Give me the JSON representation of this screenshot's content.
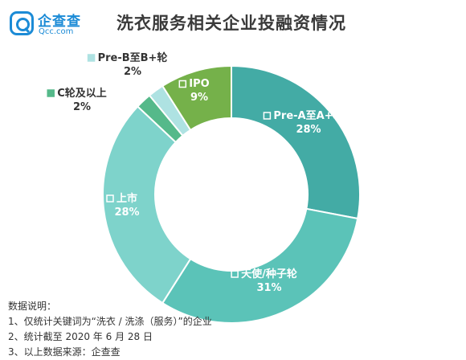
{
  "logo": {
    "name": "企查查",
    "domain": "Qcc.com"
  },
  "title": "洗衣服务相关企业投融资情况",
  "chart_data": {
    "type": "pie",
    "donut": true,
    "unit": "%",
    "slices": [
      {
        "label": "Pre-A至A+轮",
        "value": 28,
        "value_label": "28%",
        "color": "#43ABA5"
      },
      {
        "label": "天使/种子轮",
        "value": 31,
        "value_label": "31%",
        "color": "#5BC3B8"
      },
      {
        "label": "上市",
        "value": 28,
        "value_label": "28%",
        "color": "#7ED3CB"
      },
      {
        "label": "C轮及以上",
        "value": 2,
        "value_label": "2%",
        "color": "#55B98A"
      },
      {
        "label": "Pre-B至B+轮",
        "value": 2,
        "value_label": "2%",
        "color": "#AEE2E2"
      },
      {
        "label": "IPO",
        "value": 9,
        "value_label": "9%",
        "color": "#75B14A"
      }
    ]
  },
  "notes": {
    "heading": "数据说明：",
    "lines": [
      "1、仅统计关键词为“洗衣 / 洗涤（服务）”的企业",
      "2、统计截至 2020 年 6 月 28 日",
      "3、以上数据来源：企查查"
    ]
  }
}
